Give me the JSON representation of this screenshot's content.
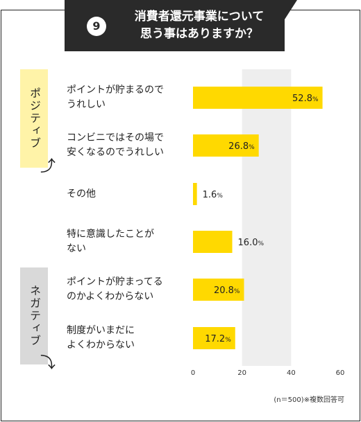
{
  "question_number": "9",
  "title": "消費者還元事業について\n思う事はありますか？",
  "side_tags": {
    "positive": "ポジティブ",
    "negative": "ネガティブ"
  },
  "footnote": "(n＝500)※複数回答可",
  "colors": {
    "bar": "#ffd900",
    "header_bg": "#2a2a2a",
    "grid_band": "#eeeeee",
    "positive_tag": "#fff3a8",
    "negative_tag": "#d9d9d9"
  },
  "chart_data": {
    "type": "bar",
    "orientation": "horizontal",
    "categories": [
      "ポイントが貯まるので\nうれしい",
      "コンビニではその場で\n安くなるのでうれしい",
      "その他",
      "特に意識したことが\nない",
      "ポイントが貯まってる\nのかよくわからない",
      "制度がいまだに\nよくわからない"
    ],
    "values": [
      52.8,
      26.8,
      1.6,
      16.0,
      20.8,
      17.2
    ],
    "value_labels": [
      "52.8",
      "26.8",
      "1.6",
      "16.0",
      "20.8",
      "17.2"
    ],
    "value_unit": "%",
    "xlim": [
      0,
      60
    ],
    "x_ticks": [
      "0",
      "20",
      "40",
      "60"
    ]
  }
}
